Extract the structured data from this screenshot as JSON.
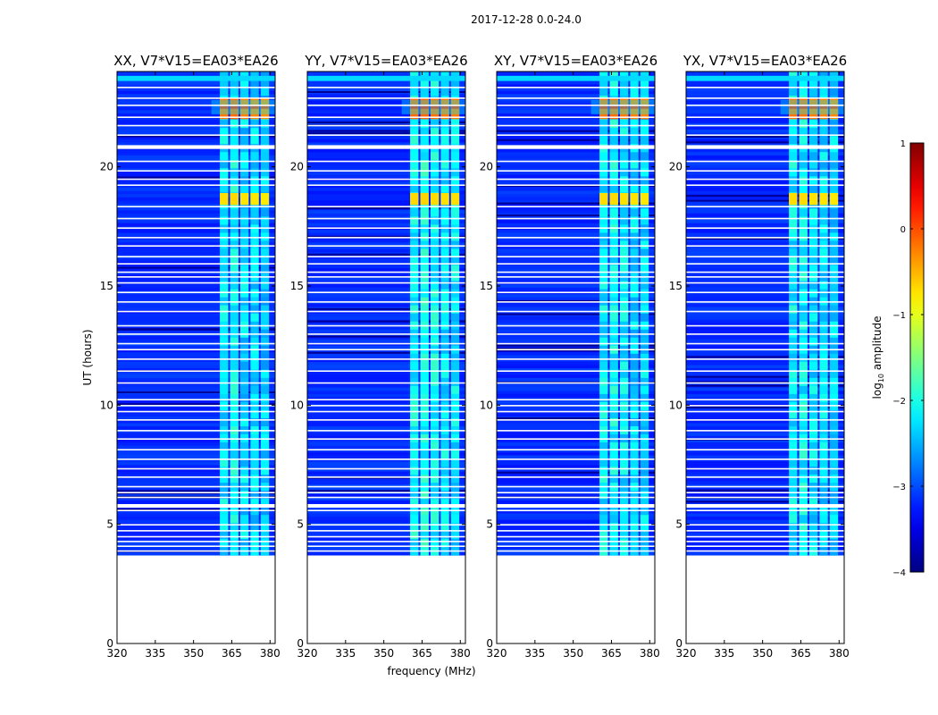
{
  "figure": {
    "suptitle": "2017-12-28 0.0-24.0"
  },
  "chart_data": {
    "type": "heatmap",
    "xlabel": "frequency (MHz)",
    "ylabel": "UT (hours)",
    "xlim": [
      320,
      382
    ],
    "ylim": [
      0,
      24
    ],
    "xticks": [
      320,
      335,
      350,
      365,
      380
    ],
    "yticks": [
      0,
      5,
      10,
      15,
      20
    ],
    "xtick_labels": [
      "320",
      "335",
      "350",
      "365",
      "380"
    ],
    "ytick_labels": [
      "0",
      "5",
      "10",
      "15",
      "20"
    ],
    "data_start_hour": 3.7,
    "data_end_hour": 24.0,
    "interference_band_mhz": [
      360,
      380
    ],
    "bright_event_hours": [
      [
        22.0,
        22.9
      ],
      [
        18.4,
        18.9
      ]
    ],
    "colorbar": {
      "label_prefix": "log",
      "label_sub": "10",
      "label_suffix": " amplitude",
      "min": -4,
      "max": 1,
      "ticks": [
        -4,
        -3,
        -2,
        -1,
        0,
        1
      ],
      "tick_labels": [
        "−4",
        "−3",
        "−2",
        "−1",
        "0",
        "1"
      ],
      "colormap": "jet"
    },
    "panels": [
      {
        "title": "XX, V7*V15=EA03*EA26",
        "polarization": "XX",
        "band_level": [
          0.55,
          0.62,
          0.5,
          0.48,
          0.45
        ]
      },
      {
        "title": "YY, V7*V15=EA03*EA26",
        "polarization": "YY",
        "band_level": [
          0.62,
          0.66,
          0.6,
          0.55,
          0.55
        ]
      },
      {
        "title": "XY, V7*V15=EA03*EA26",
        "polarization": "XY",
        "band_level": [
          0.58,
          0.6,
          0.54,
          0.5,
          0.48
        ]
      },
      {
        "title": "YX, V7*V15=EA03*EA26",
        "polarization": "YX",
        "band_level": [
          0.58,
          0.6,
          0.52,
          0.5,
          0.47
        ]
      }
    ]
  }
}
